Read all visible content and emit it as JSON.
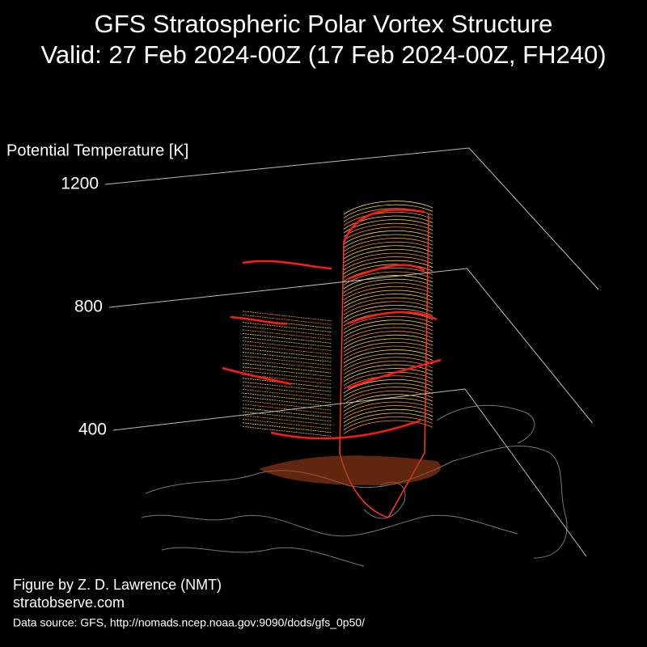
{
  "chart_data": {
    "type": "surface3d",
    "title": [
      "GFS Stratospheric Polar Vortex Structure",
      "Valid: 27 Feb 2024-00Z  (17 Feb 2024-00Z, FH240)"
    ],
    "zlabel": "Potential Temperature [K]",
    "zlim": [
      400,
      1200
    ],
    "zticks": [
      400,
      800,
      1200
    ],
    "grid": true
  },
  "credits": {
    "author": "Figure by Z. D. Lawrence (NMT)",
    "site": "stratobserve.com",
    "source": "Data source: GFS, http://nomads.ncep.noaa.gov:9090/dods/gfs_0p50/"
  }
}
